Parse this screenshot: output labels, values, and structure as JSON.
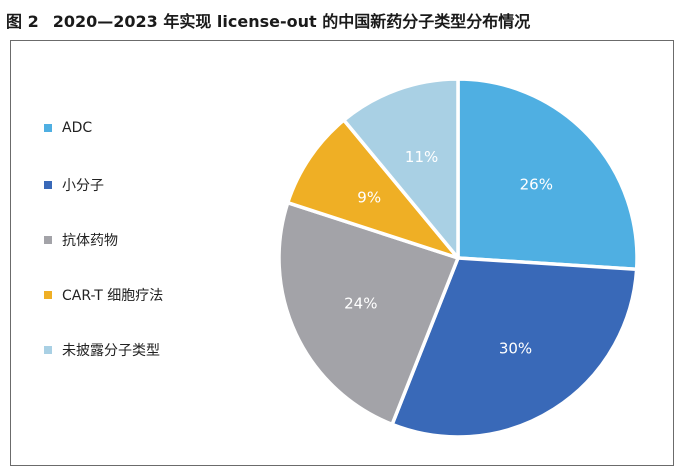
{
  "figure": {
    "number": "图 2",
    "title": "2020—2023 年实现 license-out 的中国新药分子类型分布情况"
  },
  "chart_data": {
    "type": "pie",
    "start_angle_deg": 0,
    "direction": "clockwise",
    "slices": [
      {
        "label": "ADC",
        "value": 26,
        "display": "26%",
        "color": "#4fafe2",
        "text_color": "#ffffff"
      },
      {
        "label": "小分子",
        "value": 30,
        "display": "30%",
        "color": "#3969b8",
        "text_color": "#ffffff"
      },
      {
        "label": "抗体药物",
        "value": 24,
        "display": "24%",
        "color": "#a3a3a8",
        "text_color": "#ffffff"
      },
      {
        "label": "CAR-T 细胞疗法",
        "value": 9,
        "display": "9%",
        "color": "#efaf25",
        "text_color": "#ffffff"
      },
      {
        "label": "未披露分子类型",
        "value": 11,
        "display": "11%",
        "color": "#a9d0e4",
        "text_color": "#ffffff"
      }
    ],
    "legend_position": "left"
  }
}
